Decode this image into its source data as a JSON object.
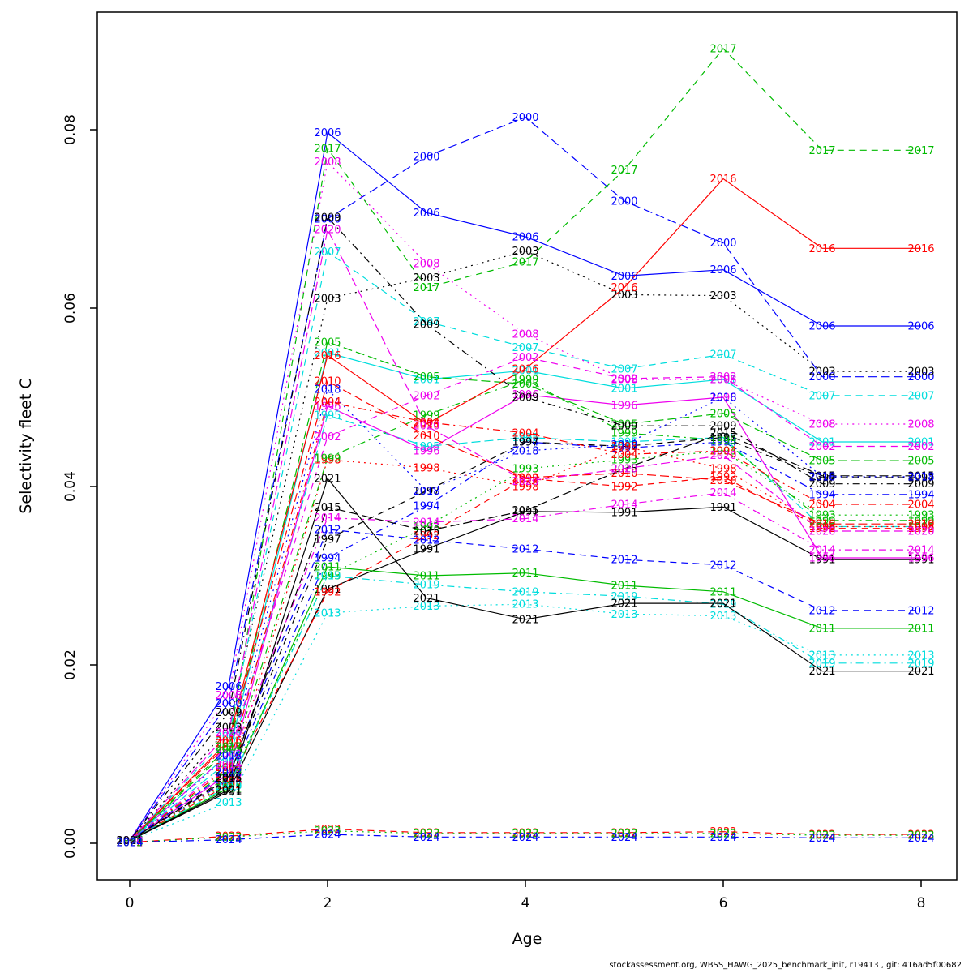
{
  "footer": "stockassessment.org, WBSS_HAWG_2025_benchmark_init, r19413 , git: 416ad5f00682",
  "chart_data": {
    "type": "line",
    "title": "",
    "xlabel": "Age",
    "ylabel": "Selectivity fleet C",
    "x": [
      0,
      1,
      2,
      3,
      4,
      5,
      6,
      7,
      8
    ],
    "xlim": [
      -0.3,
      8.35
    ],
    "ylim": [
      -0.004,
      0.0932
    ],
    "xticks": [
      0,
      2,
      4,
      6,
      8
    ],
    "ytick_values": [
      0,
      0.02,
      0.04,
      0.06,
      0.08
    ],
    "ytick_labels": [
      "0.00",
      "0.02",
      "0.04",
      "0.06",
      "0.08"
    ],
    "grid": false,
    "legend_position": "none",
    "point_label_style": "year text drawn at every data point in series color",
    "series": [
      {
        "name": "1991",
        "color": "#000000",
        "linetype": "solid",
        "values": [
          0.0003,
          0.0058,
          0.0285,
          0.033,
          0.0372,
          0.0371,
          0.0377,
          0.0318,
          0.0318
        ]
      },
      {
        "name": "1992",
        "color": "#FF0000",
        "linetype": "dashed",
        "values": [
          0.0003,
          0.0066,
          0.0282,
          0.0345,
          0.0409,
          0.04,
          0.0411,
          0.0353,
          0.0353
        ]
      },
      {
        "name": "1993",
        "color": "#00BB00",
        "linetype": "dotted",
        "values": [
          0.0003,
          0.0068,
          0.03,
          0.0355,
          0.042,
          0.043,
          0.044,
          0.0368,
          0.0368
        ]
      },
      {
        "name": "1994",
        "color": "#0000FF",
        "linetype": "dashdot",
        "values": [
          0.0003,
          0.0071,
          0.032,
          0.0378,
          0.045,
          0.0443,
          0.045,
          0.0391,
          0.0391
        ]
      },
      {
        "name": "1995",
        "color": "#00DDDD",
        "linetype": "longdash",
        "values": [
          0.0003,
          0.0092,
          0.048,
          0.0445,
          0.0455,
          0.045,
          0.0455,
          0.0355,
          0.0355
        ]
      },
      {
        "name": "1996",
        "color": "#EE00EE",
        "linetype": "solid",
        "values": [
          0.0003,
          0.0078,
          0.049,
          0.044,
          0.0503,
          0.0491,
          0.05,
          0.032,
          0.032
        ]
      },
      {
        "name": "1997",
        "color": "#000000",
        "linetype": "dashed",
        "values": [
          0.0003,
          0.0075,
          0.0341,
          0.0395,
          0.045,
          0.0445,
          0.0455,
          0.041,
          0.041
        ]
      },
      {
        "name": "1998",
        "color": "#FF0000",
        "linetype": "dotted",
        "values": [
          0.0003,
          0.007,
          0.043,
          0.0421,
          0.04,
          0.0445,
          0.042,
          0.0355,
          0.0355
        ]
      },
      {
        "name": "1999",
        "color": "#00BB00",
        "linetype": "dashdot",
        "values": [
          0.0003,
          0.0082,
          0.0432,
          0.048,
          0.052,
          0.046,
          0.0452,
          0.0362,
          0.0362
        ]
      },
      {
        "name": "2000",
        "color": "#0000FF",
        "linetype": "longdash",
        "values": [
          0.0003,
          0.0157,
          0.07,
          0.077,
          0.0814,
          0.072,
          0.0673,
          0.0523,
          0.0523
        ]
      },
      {
        "name": "2001",
        "color": "#00DDDD",
        "linetype": "solid",
        "values": [
          0.0003,
          0.01,
          0.055,
          0.052,
          0.053,
          0.051,
          0.052,
          0.045,
          0.045
        ]
      },
      {
        "name": "2002",
        "color": "#EE00EE",
        "linetype": "dashed",
        "values": [
          0.0003,
          0.01,
          0.0456,
          0.0502,
          0.0545,
          0.0521,
          0.0523,
          0.0445,
          0.0445
        ]
      },
      {
        "name": "2003",
        "color": "#000000",
        "linetype": "dotted",
        "values": [
          0.0003,
          0.013,
          0.0611,
          0.0634,
          0.0664,
          0.0615,
          0.0614,
          0.0529,
          0.0529
        ]
      },
      {
        "name": "2004",
        "color": "#FF0000",
        "linetype": "dashdot",
        "values": [
          0.0003,
          0.0085,
          0.0495,
          0.0472,
          0.046,
          0.0436,
          0.044,
          0.038,
          0.038
        ]
      },
      {
        "name": "2005",
        "color": "#00BB00",
        "linetype": "longdash",
        "values": [
          0.0003,
          0.0105,
          0.0562,
          0.0523,
          0.0515,
          0.047,
          0.0482,
          0.0429,
          0.0429
        ]
      },
      {
        "name": "2006",
        "color": "#0000FF",
        "linetype": "solid",
        "values": [
          0.0003,
          0.0176,
          0.0797,
          0.0707,
          0.068,
          0.0636,
          0.0643,
          0.058,
          0.058
        ]
      },
      {
        "name": "2007",
        "color": "#00DDDD",
        "linetype": "dashed",
        "values": [
          0.0003,
          0.012,
          0.0663,
          0.0585,
          0.0556,
          0.0532,
          0.0548,
          0.0502,
          0.0502
        ]
      },
      {
        "name": "2008",
        "color": "#EE00EE",
        "linetype": "dotted",
        "values": [
          0.0003,
          0.0166,
          0.0764,
          0.065,
          0.0571,
          0.052,
          0.052,
          0.047,
          0.047
        ]
      },
      {
        "name": "2009",
        "color": "#000000",
        "linetype": "dashdot",
        "values": [
          0.0003,
          0.0147,
          0.0702,
          0.0582,
          0.05,
          0.0468,
          0.0468,
          0.0403,
          0.0403
        ]
      },
      {
        "name": "2010",
        "color": "#FF0000",
        "linetype": "longdash",
        "values": [
          0.0003,
          0.0112,
          0.0518,
          0.0457,
          0.041,
          0.0415,
          0.0407,
          0.0358,
          0.0358
        ]
      },
      {
        "name": "2011",
        "color": "#00BB00",
        "linetype": "solid",
        "values": [
          0.0003,
          0.0062,
          0.031,
          0.03,
          0.0303,
          0.0289,
          0.0282,
          0.0241,
          0.0241
        ]
      },
      {
        "name": "2012",
        "color": "#0000FF",
        "linetype": "dashed",
        "values": [
          0.0003,
          0.008,
          0.0352,
          0.034,
          0.033,
          0.0318,
          0.0312,
          0.0261,
          0.0261
        ]
      },
      {
        "name": "2013",
        "color": "#00DDDD",
        "linetype": "dotted",
        "values": [
          0.0003,
          0.0046,
          0.0258,
          0.0266,
          0.0268,
          0.0257,
          0.0255,
          0.0211,
          0.0211
        ]
      },
      {
        "name": "2014",
        "color": "#EE00EE",
        "linetype": "dashdot",
        "values": [
          0.0003,
          0.0088,
          0.0365,
          0.036,
          0.0364,
          0.038,
          0.0393,
          0.0329,
          0.0329
        ]
      },
      {
        "name": "2015",
        "color": "#000000",
        "linetype": "longdash",
        "values": [
          0.0003,
          0.0073,
          0.0377,
          0.035,
          0.0373,
          0.042,
          0.046,
          0.0412,
          0.0412
        ]
      },
      {
        "name": "2016",
        "color": "#FF0000",
        "linetype": "solid",
        "values": [
          0.0003,
          0.0115,
          0.0547,
          0.047,
          0.0532,
          0.0623,
          0.0745,
          0.0667,
          0.0667
        ]
      },
      {
        "name": "2017",
        "color": "#00BB00",
        "linetype": "dashed",
        "values": [
          0.0003,
          0.0108,
          0.0779,
          0.0623,
          0.0652,
          0.0755,
          0.0891,
          0.0777,
          0.0777
        ]
      },
      {
        "name": "2018",
        "color": "#0000FF",
        "linetype": "dotted",
        "values": [
          0.0003,
          0.0098,
          0.0509,
          0.0395,
          0.044,
          0.0447,
          0.05,
          0.0411,
          0.0411
        ]
      },
      {
        "name": "2019",
        "color": "#00DDDD",
        "linetype": "dashdot",
        "values": [
          0.0003,
          0.0064,
          0.03,
          0.029,
          0.0282,
          0.0277,
          0.0268,
          0.0202,
          0.0202
        ]
      },
      {
        "name": "2020",
        "color": "#EE00EE",
        "linetype": "longdash",
        "values": [
          0.0003,
          0.0124,
          0.0688,
          0.0468,
          0.0406,
          0.042,
          0.0435,
          0.035,
          0.035
        ]
      },
      {
        "name": "2021",
        "color": "#000000",
        "linetype": "solid",
        "values": [
          0.0003,
          0.006,
          0.0409,
          0.0275,
          0.0251,
          0.0269,
          0.0269,
          0.0193,
          0.0193
        ]
      },
      {
        "name": "2022",
        "color": "#FF0000",
        "linetype": "dashed",
        "values": [
          0.0001,
          0.0008,
          0.0016,
          0.0012,
          0.0012,
          0.0012,
          0.0013,
          0.001,
          0.001
        ]
      },
      {
        "name": "2023",
        "color": "#00BB00",
        "linetype": "dotted",
        "values": [
          0.0001,
          0.0007,
          0.0014,
          0.0011,
          0.0011,
          0.0011,
          0.0011,
          0.0009,
          0.0009
        ]
      },
      {
        "name": "2024",
        "color": "#0000FF",
        "linetype": "dashdot",
        "values": [
          0.0001,
          0.0004,
          0.001,
          0.0007,
          0.0007,
          0.0007,
          0.0007,
          0.0006,
          0.0006
        ]
      }
    ]
  }
}
